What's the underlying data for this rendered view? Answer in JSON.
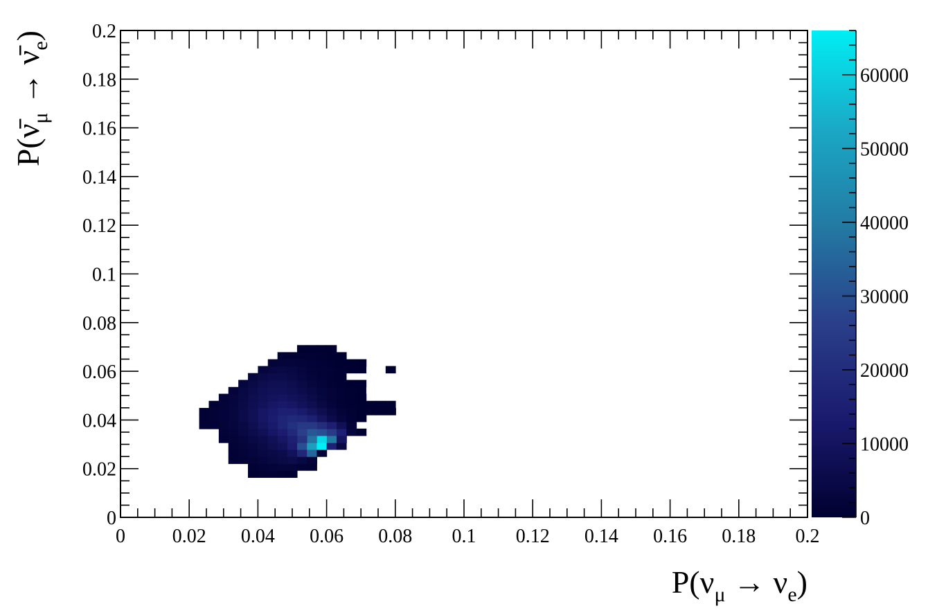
{
  "chart_data": {
    "type": "heatmap",
    "xlabel": {
      "prefix": "P(",
      "nu1": "ν",
      "sub1": "μ",
      "arrow": " → ",
      "nu2": "ν",
      "sub2": "e",
      "suffix": ")"
    },
    "ylabel": {
      "prefix": "P(",
      "nu1": "ν̄",
      "sub1": "μ",
      "arrow": " → ",
      "nu2": "ν̄",
      "sub2": "e",
      "suffix": ")"
    },
    "xlim": [
      0,
      0.2
    ],
    "ylim": [
      0,
      0.2
    ],
    "x_ticks": [
      "0",
      "0.02",
      "0.04",
      "0.06",
      "0.08",
      "0.1",
      "0.12",
      "0.14",
      "0.16",
      "0.18",
      "0.2"
    ],
    "y_ticks": [
      "0",
      "0.02",
      "0.04",
      "0.06",
      "0.08",
      "0.1",
      "0.12",
      "0.14",
      "0.16",
      "0.18",
      "0.2"
    ],
    "x_tick_values": [
      0,
      0.02,
      0.04,
      0.06,
      0.08,
      0.1,
      0.12,
      0.14,
      0.16,
      0.18,
      0.2
    ],
    "y_tick_values": [
      0,
      0.02,
      0.04,
      0.06,
      0.08,
      0.1,
      0.12,
      0.14,
      0.16,
      0.18,
      0.2
    ],
    "bin_width": 0.00286,
    "z_range": [
      0,
      66000
    ],
    "z_ticks": [
      "0",
      "10000",
      "20000",
      "30000",
      "40000",
      "50000",
      "60000"
    ],
    "z_tick_values": [
      0,
      10000,
      20000,
      30000,
      40000,
      50000,
      60000
    ],
    "colormap": [
      "#000030",
      "#1a1a6e",
      "#2a3f8a",
      "#237aa3",
      "#1aa9c6",
      "#00eef4"
    ],
    "rows": [
      {
        "y": 0.0164,
        "x_start": 0.0371,
        "z": [
          500,
          800,
          800,
          500,
          200
        ]
      },
      {
        "y": 0.0193,
        "x_start": 0.0371,
        "z": [
          1000,
          1600,
          2200,
          2300,
          2400,
          1400,
          900
        ]
      },
      {
        "y": 0.0221,
        "x_start": 0.0314,
        "z": [
          800,
          1400,
          2000,
          3000,
          4000,
          5000,
          6000,
          4000,
          2000
        ]
      },
      {
        "y": 0.025,
        "x_start": 0.0314,
        "z": [
          1200,
          2000,
          3000,
          4000,
          5000,
          6000,
          9000,
          18000,
          35000,
          2000
        ]
      },
      {
        "y": 0.0279,
        "x_start": 0.0314,
        "z": [
          1500,
          2500,
          3500,
          5000,
          7000,
          9000,
          14000,
          30000,
          50000,
          66000,
          16000,
          4000
        ]
      },
      {
        "y": 0.0307,
        "x_start": 0.0286,
        "z": [
          1200,
          2000,
          3000,
          4500,
          6000,
          8000,
          11000,
          15000,
          22000,
          38000,
          62000,
          40000,
          10000
        ]
      },
      {
        "y": 0.0336,
        "x_start": 0.0286,
        "z": [
          1500,
          2500,
          4000,
          6000,
          8000,
          11000,
          14000,
          19000,
          26000,
          32000,
          30000,
          25000,
          15000,
          3000,
          500
        ]
      },
      {
        "y": 0.0364,
        "x_start": 0.0229,
        "z": [
          800,
          1200,
          1800,
          3000,
          4500,
          7000,
          10000,
          13000,
          17000,
          21000,
          24000,
          24000,
          20000,
          15000,
          8000,
          2000
        ]
      },
      {
        "y": 0.0393,
        "x_start": 0.0229,
        "z": [
          900,
          1400,
          2200,
          3500,
          5500,
          8000,
          11000,
          14000,
          17000,
          19000,
          18000,
          15000,
          10000,
          6000,
          3000,
          1200,
          300
        ]
      },
      {
        "y": 0.0421,
        "x_start": 0.0229,
        "z": [
          800,
          1300,
          2200,
          3500,
          5500,
          8000,
          11000,
          13000,
          15000,
          15000,
          13000,
          10000,
          7000,
          4000,
          2000,
          800,
          300,
          200,
          100,
          100
        ]
      },
      {
        "y": 0.045,
        "x_start": 0.0257,
        "z": [
          900,
          1800,
          3000,
          5000,
          7000,
          9000,
          11000,
          12000,
          11000,
          9000,
          7000,
          4500,
          2500,
          1200,
          600,
          300,
          200,
          200,
          200
        ]
      },
      {
        "y": 0.0479,
        "x_start": 0.0286,
        "z": [
          1500,
          2800,
          4500,
          6500,
          8000,
          9500,
          10000,
          9000,
          7500,
          5500,
          3500,
          2000,
          1000,
          500,
          300
        ]
      },
      {
        "y": 0.0507,
        "x_start": 0.0314,
        "z": [
          2200,
          4000,
          6000,
          7500,
          8500,
          8500,
          7500,
          6000,
          4500,
          3000,
          1800,
          900,
          400,
          200
        ]
      },
      {
        "y": 0.0536,
        "x_start": 0.0343,
        "z": [
          3000,
          5000,
          6500,
          7500,
          7500,
          6500,
          5000,
          3500,
          2200,
          1200,
          600,
          300,
          150
        ]
      },
      {
        "y": 0.0564,
        "x_start": 0.0371,
        "z": [
          3500,
          5000,
          6000,
          6000,
          5000,
          3800,
          2600,
          1500,
          800,
          400
        ]
      },
      {
        "y": 0.0593,
        "x_start": 0.04,
        "z": [
          3000,
          4000,
          4500,
          4000,
          3200,
          2200,
          1400,
          800,
          400,
          200,
          100,
          0,
          0,
          100
        ]
      },
      {
        "y": 0.0621,
        "x_start": 0.0429,
        "z": [
          2000,
          2500,
          2500,
          2000,
          1500,
          1000,
          600,
          300,
          150,
          100
        ]
      },
      {
        "y": 0.065,
        "x_start": 0.0457,
        "z": [
          800,
          1000,
          1000,
          800,
          500,
          300,
          150
        ]
      },
      {
        "y": 0.0679,
        "x_start": 0.0514,
        "z": [
          300,
          300,
          300,
          200
        ]
      }
    ]
  }
}
